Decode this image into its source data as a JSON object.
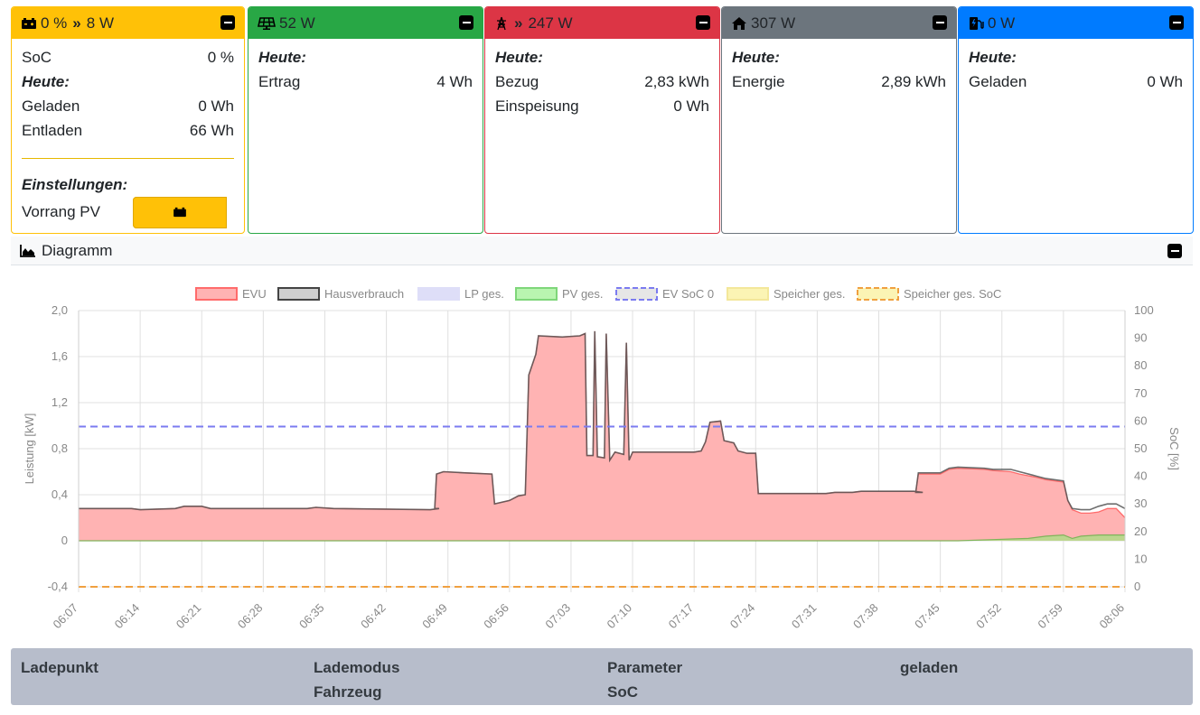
{
  "battery": {
    "soc_header": "0 %",
    "power_header": "8 W",
    "soc_label": "SoC",
    "soc_value": "0 %",
    "today_label": "Heute:",
    "charged_label": "Geladen",
    "charged_value": "0 Wh",
    "discharged_label": "Entladen",
    "discharged_value": "66 Wh",
    "settings_label": "Einstellungen:",
    "priority_label": "Vorrang PV",
    "color": "#ffc107"
  },
  "pv": {
    "power_header": "52 W",
    "today_label": "Heute:",
    "yield_label": "Ertrag",
    "yield_value": "4 Wh",
    "color": "#28a745"
  },
  "grid": {
    "power_header": "247 W",
    "today_label": "Heute:",
    "import_label": "Bezug",
    "import_value": "2,83 kWh",
    "export_label": "Einspeisung",
    "export_value": "0 Wh",
    "color": "#dc3545"
  },
  "house": {
    "power_header": "307 W",
    "today_label": "Heute:",
    "energy_label": "Energie",
    "energy_value": "2,89 kWh",
    "color": "#6c757d"
  },
  "charging": {
    "power_header": "0 W",
    "today_label": "Heute:",
    "charged_label": "Geladen",
    "charged_value": "0 Wh",
    "color": "#007bff"
  },
  "diagram": {
    "title": "Diagramm"
  },
  "chart_data": {
    "type": "area",
    "legend_position": "top",
    "legend": [
      "EVU",
      "Hausverbrauch",
      "LP ges.",
      "PV ges.",
      "EV SoC 0",
      "Speicher ges.",
      "Speicher ges. SoC"
    ],
    "ylabel": "Leistung [kW]",
    "y2label": "SoC [%]",
    "ylim": [
      -0.4,
      2.0
    ],
    "y2lim": [
      0,
      100
    ],
    "yticks": [
      "2,0",
      "1,6",
      "1,2",
      "0,8",
      "0,4",
      "0",
      "-0,4"
    ],
    "y2ticks": [
      "100",
      "90",
      "80",
      "70",
      "60",
      "50",
      "40",
      "30",
      "20",
      "10",
      "0"
    ],
    "xticks": [
      "06:07",
      "06:14",
      "06:21",
      "06:28",
      "06:35",
      "06:42",
      "06:49",
      "06:56",
      "07:03",
      "07:10",
      "07:17",
      "07:24",
      "07:31",
      "07:38",
      "07:45",
      "07:52",
      "07:59",
      "08:06"
    ],
    "xrange_minutes": [
      0,
      119
    ],
    "series": [
      {
        "name": "EVU",
        "color": "#ff9a9a",
        "points": [
          [
            0,
            0.28
          ],
          [
            6,
            0.28
          ],
          [
            7,
            0.27
          ],
          [
            11,
            0.28
          ],
          [
            12,
            0.3
          ],
          [
            14,
            0.3
          ],
          [
            15,
            0.28
          ],
          [
            26,
            0.28
          ],
          [
            27,
            0.29
          ],
          [
            29,
            0.28
          ],
          [
            40,
            0.27
          ],
          [
            41,
            0.28
          ],
          [
            40.5,
            0.28
          ],
          [
            40.7,
            0.58
          ],
          [
            41.5,
            0.6
          ],
          [
            44,
            0.59
          ],
          [
            47,
            0.58
          ],
          [
            47.3,
            0.32
          ],
          [
            49,
            0.35
          ],
          [
            50,
            0.39
          ],
          [
            50.8,
            0.4
          ],
          [
            51.2,
            1.44
          ],
          [
            52,
            1.62
          ],
          [
            52.3,
            1.78
          ],
          [
            55,
            1.77
          ],
          [
            57,
            1.78
          ],
          [
            57.6,
            1.8
          ],
          [
            57.8,
            0.74
          ],
          [
            58.5,
            0.74
          ],
          [
            58.7,
            1.82
          ],
          [
            59,
            0.73
          ],
          [
            59.8,
            0.72
          ],
          [
            60,
            1.8
          ],
          [
            60.4,
            0.7
          ],
          [
            61,
            0.77
          ],
          [
            62,
            0.75
          ],
          [
            62.3,
            1.72
          ],
          [
            62.6,
            0.7
          ],
          [
            63,
            0.77
          ],
          [
            67,
            0.77
          ],
          [
            70,
            0.77
          ],
          [
            70.8,
            0.78
          ],
          [
            71.3,
            0.86
          ],
          [
            71.8,
            1.03
          ],
          [
            73,
            1.04
          ],
          [
            73.4,
            0.87
          ],
          [
            74.5,
            0.85
          ],
          [
            75,
            0.78
          ],
          [
            76,
            0.76
          ],
          [
            77,
            0.76
          ],
          [
            77.3,
            0.41
          ],
          [
            80,
            0.41
          ],
          [
            85,
            0.41
          ],
          [
            86,
            0.42
          ],
          [
            88,
            0.42
          ],
          [
            89,
            0.43
          ],
          [
            95,
            0.43
          ],
          [
            96,
            0.42
          ],
          [
            95.2,
            0.42
          ],
          [
            95.5,
            0.58
          ],
          [
            98,
            0.58
          ],
          [
            99,
            0.62
          ],
          [
            100,
            0.63
          ],
          [
            103,
            0.62
          ],
          [
            104,
            0.61
          ],
          [
            106,
            0.6
          ],
          [
            107,
            0.58
          ],
          [
            109,
            0.55
          ],
          [
            110,
            0.53
          ],
          [
            112,
            0.51
          ],
          [
            112.5,
            0.35
          ],
          [
            113,
            0.27
          ],
          [
            114,
            0.24
          ],
          [
            115,
            0.24
          ],
          [
            116,
            0.25
          ],
          [
            117,
            0.28
          ],
          [
            118,
            0.28
          ],
          [
            119,
            0.2
          ]
        ]
      },
      {
        "name": "Hausverbrauch",
        "color": "#4a4a4a",
        "points": [
          [
            0,
            0.28
          ],
          [
            6,
            0.28
          ],
          [
            7,
            0.27
          ],
          [
            11,
            0.28
          ],
          [
            12,
            0.3
          ],
          [
            14,
            0.3
          ],
          [
            15,
            0.28
          ],
          [
            26,
            0.28
          ],
          [
            27,
            0.29
          ],
          [
            29,
            0.28
          ],
          [
            40,
            0.27
          ],
          [
            41,
            0.28
          ],
          [
            40.5,
            0.28
          ],
          [
            40.7,
            0.58
          ],
          [
            41.5,
            0.6
          ],
          [
            44,
            0.59
          ],
          [
            47,
            0.58
          ],
          [
            47.3,
            0.32
          ],
          [
            49,
            0.35
          ],
          [
            50,
            0.39
          ],
          [
            50.8,
            0.4
          ],
          [
            51.2,
            1.44
          ],
          [
            52,
            1.62
          ],
          [
            52.3,
            1.78
          ],
          [
            55,
            1.77
          ],
          [
            57,
            1.78
          ],
          [
            57.6,
            1.8
          ],
          [
            57.8,
            0.74
          ],
          [
            58.5,
            0.74
          ],
          [
            58.7,
            1.82
          ],
          [
            59,
            0.73
          ],
          [
            59.8,
            0.72
          ],
          [
            60,
            1.8
          ],
          [
            60.4,
            0.7
          ],
          [
            61,
            0.77
          ],
          [
            62,
            0.75
          ],
          [
            62.3,
            1.72
          ],
          [
            62.6,
            0.7
          ],
          [
            63,
            0.77
          ],
          [
            67,
            0.77
          ],
          [
            70,
            0.77
          ],
          [
            70.8,
            0.78
          ],
          [
            71.3,
            0.86
          ],
          [
            71.8,
            1.03
          ],
          [
            73,
            1.04
          ],
          [
            73.4,
            0.87
          ],
          [
            74.5,
            0.85
          ],
          [
            75,
            0.78
          ],
          [
            76,
            0.76
          ],
          [
            77,
            0.76
          ],
          [
            77.3,
            0.41
          ],
          [
            80,
            0.41
          ],
          [
            85,
            0.41
          ],
          [
            86,
            0.42
          ],
          [
            88,
            0.42
          ],
          [
            89,
            0.43
          ],
          [
            95,
            0.43
          ],
          [
            96,
            0.42
          ],
          [
            95.2,
            0.42
          ],
          [
            95.5,
            0.59
          ],
          [
            98,
            0.59
          ],
          [
            99,
            0.63
          ],
          [
            100,
            0.64
          ],
          [
            103,
            0.63
          ],
          [
            104,
            0.62
          ],
          [
            106,
            0.62
          ],
          [
            107,
            0.6
          ],
          [
            109,
            0.56
          ],
          [
            110,
            0.54
          ],
          [
            112,
            0.52
          ],
          [
            112.5,
            0.35
          ],
          [
            113,
            0.28
          ],
          [
            114,
            0.27
          ],
          [
            115,
            0.27
          ],
          [
            116,
            0.3
          ],
          [
            117,
            0.32
          ],
          [
            118,
            0.32
          ],
          [
            119,
            0.28
          ]
        ]
      },
      {
        "name": "PV ges.",
        "color": "#8fbc5a",
        "points": [
          [
            0,
            0.0
          ],
          [
            100,
            0.0
          ],
          [
            104,
            0.01
          ],
          [
            108,
            0.02
          ],
          [
            110,
            0.04
          ],
          [
            112,
            0.05
          ],
          [
            113,
            0.02
          ],
          [
            114,
            0.04
          ],
          [
            116,
            0.05
          ],
          [
            119,
            0.05
          ]
        ]
      }
    ],
    "ev_soc_percent": 58,
    "storage_soc_percent": 0
  },
  "lp_table": {
    "col1": "Ladepunkt",
    "col2_line1": "Lademodus",
    "col2_line2": "Fahrzeug",
    "col3_line1": "Parameter",
    "col3_line2": "SoC",
    "col4": "geladen"
  }
}
